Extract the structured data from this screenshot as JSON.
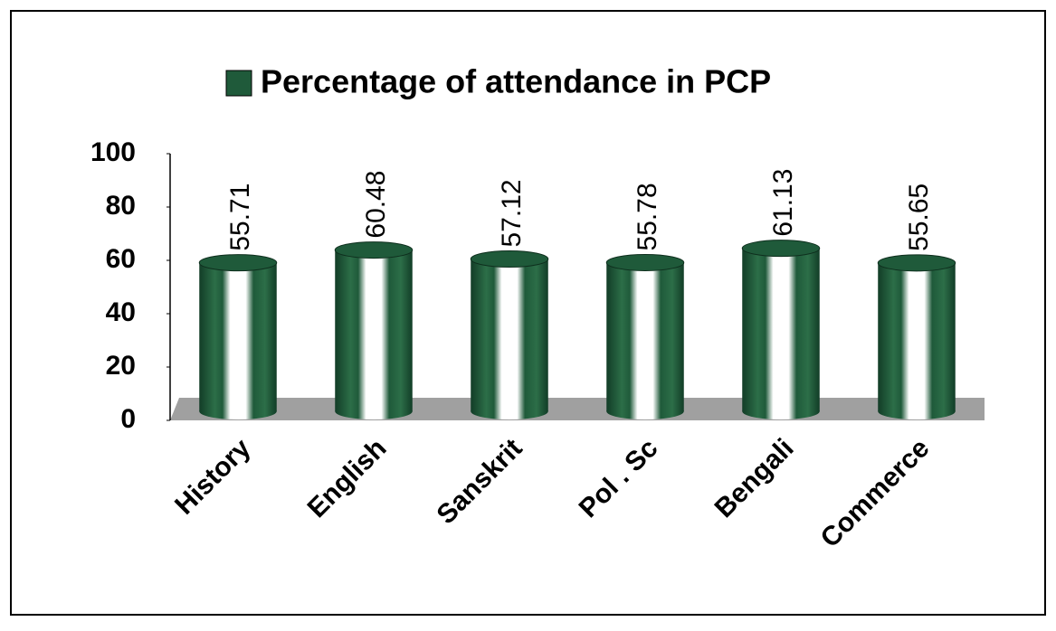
{
  "chart_data": {
    "type": "bar",
    "categories": [
      "History",
      "English",
      "Sanskrit",
      "Pol . Sc",
      "Bengali",
      "Commerce"
    ],
    "series": [
      {
        "name": "Percentage of attendance in PCP",
        "color": "#1f5a3a",
        "values": [
          55.71,
          60.48,
          57.12,
          55.78,
          61.13,
          55.65
        ]
      }
    ],
    "ylim": [
      0,
      100
    ],
    "yticks": [
      0,
      20,
      40,
      60,
      80,
      100
    ],
    "grid": false,
    "legend": "top"
  }
}
